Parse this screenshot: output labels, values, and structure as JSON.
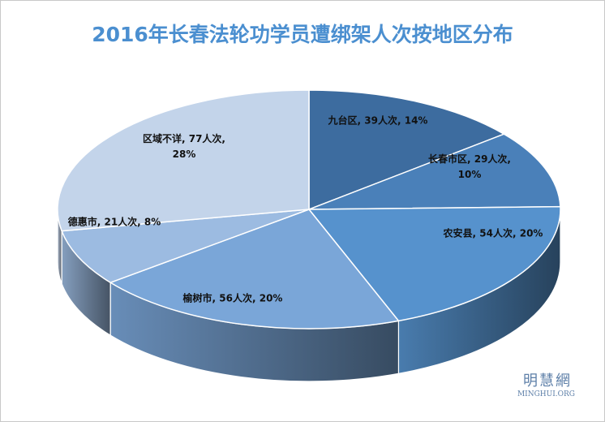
{
  "chart_data": {
    "type": "pie3d",
    "title": "2016年长春法轮功学员遭绑架人次按地区分布",
    "categories": [
      "九台区",
      "长春市区",
      "农安县",
      "榆树市",
      "德惠市",
      "区域不详"
    ],
    "values": [
      39,
      29,
      54,
      56,
      21,
      77
    ],
    "value_labels": [
      "九台区, 39人次, 14%",
      "长春市区, 29人次,\n10%",
      "农安县, 54人次, 20%",
      "榆树市, 56人次, 20%",
      "德惠市, 21人次, 8%",
      "区域不详, 77人次,\n28%"
    ],
    "colors": [
      "#3d6c9f",
      "#4a80b9",
      "#5692cd",
      "#7aa6d8",
      "#9cbbe1",
      "#c3d4ea"
    ],
    "watermark": {
      "name": "明慧網",
      "site": "MINGHUI.ORG"
    }
  }
}
